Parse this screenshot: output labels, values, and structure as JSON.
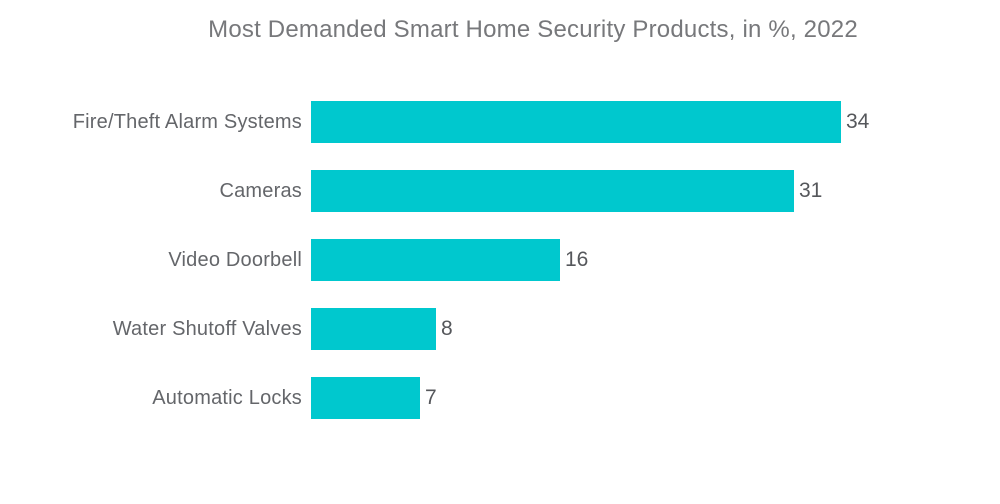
{
  "chart_data": {
    "type": "bar",
    "orientation": "horizontal",
    "title": "Most Demanded Smart Home Security Products, in %, 2022",
    "categories": [
      "Fire/Theft Alarm Systems",
      "Cameras",
      "Video Doorbell",
      "Water Shutoff Valves",
      "Automatic Locks"
    ],
    "values": [
      34,
      31,
      16,
      8,
      7
    ],
    "unit": "%",
    "xlabel": "",
    "ylabel": "",
    "xlim": [
      0,
      34
    ],
    "grid": false,
    "legend": false,
    "axis_lines": false,
    "colors": {
      "bar": "#00C8CE",
      "title_text": "#77787B",
      "category_text": "#64666A",
      "value_text": "#55575B",
      "background": "#FFFFFF"
    }
  }
}
